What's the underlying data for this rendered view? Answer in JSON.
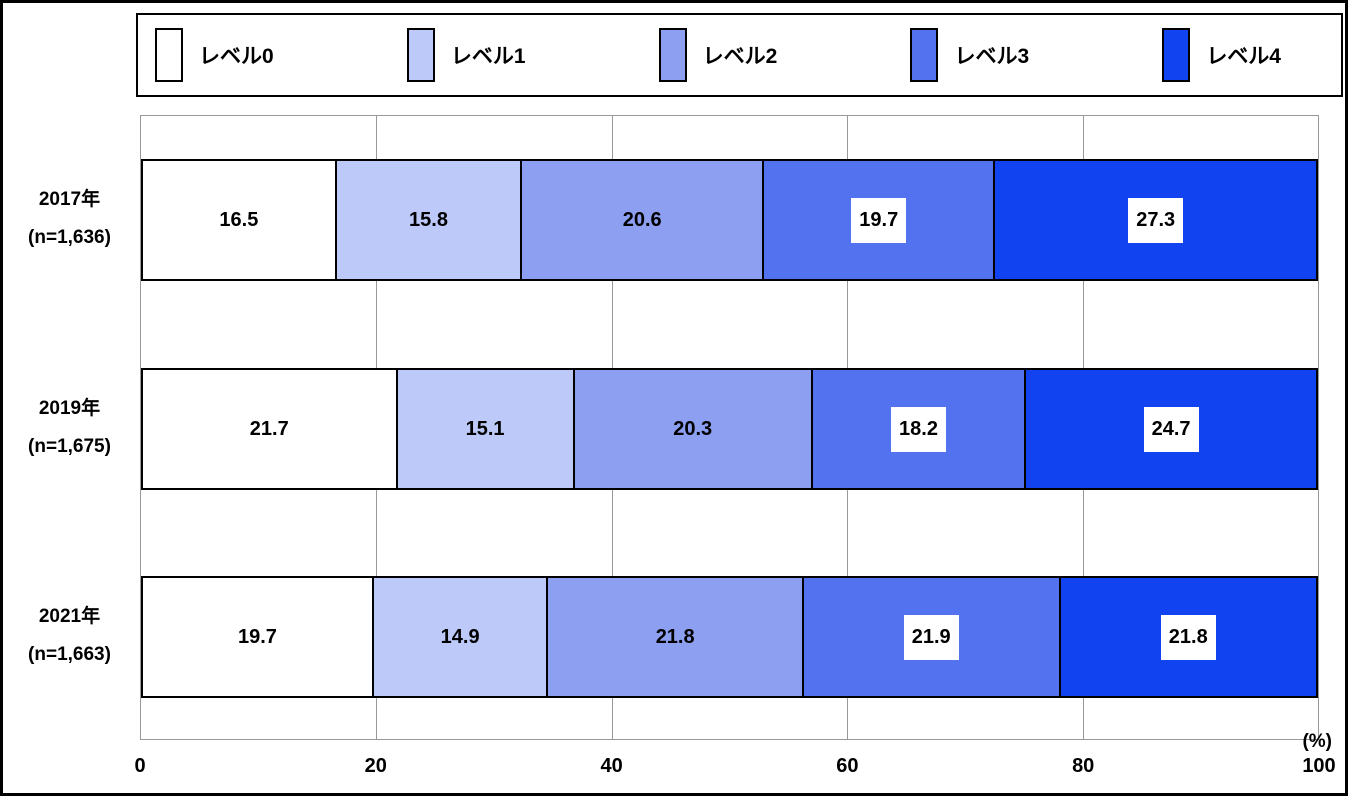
{
  "chart_data": {
    "type": "bar",
    "subtype": "horizontal-stacked",
    "title": "",
    "unit_label": "(%)",
    "xlim": [
      0,
      100
    ],
    "x_ticks": [
      "0",
      "20",
      "40",
      "60",
      "80",
      "100"
    ],
    "grid": "vertical",
    "legend_position": "top",
    "legend": [
      {
        "label": "レベル0",
        "color": "#FFFFFF"
      },
      {
        "label": "レベル1",
        "color": "#BDC9F8"
      },
      {
        "label": "レベル2",
        "color": "#8C9FF0"
      },
      {
        "label": "レベル3",
        "color": "#5372F0"
      },
      {
        "label": "レベル4",
        "color": "#1243F0"
      }
    ],
    "categories": [
      "2017年",
      "2019年",
      "2021年"
    ],
    "rows": [
      {
        "year": "2017年",
        "n_label": "(n=1,636)",
        "values": [
          16.5,
          15.8,
          20.6,
          19.7,
          27.3
        ]
      },
      {
        "year": "2019年",
        "n_label": "(n=1,675)",
        "values": [
          21.7,
          15.1,
          20.3,
          18.2,
          24.7
        ]
      },
      {
        "year": "2021年",
        "n_label": "(n=1,663)",
        "values": [
          19.7,
          14.9,
          21.8,
          21.9,
          21.8
        ]
      }
    ],
    "boxed_value_segment_indices": [
      3,
      4
    ],
    "colors": {
      "segment_border": "#000000",
      "gridline": "#999999",
      "text": "#000000",
      "background": "#FFFFFF"
    }
  }
}
